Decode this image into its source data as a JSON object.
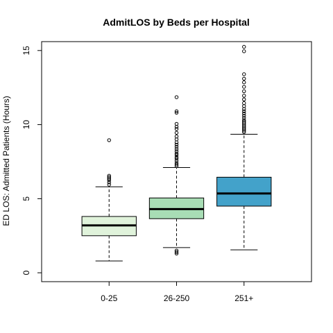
{
  "chart_data": {
    "type": "box",
    "title": "AdmitLOS by Beds per Hospital",
    "xlabel": "",
    "ylabel": "ED LOS: Admitted Patients (Hours)",
    "ylim": [
      -0.6,
      15.6
    ],
    "yticks": [
      0,
      5,
      10,
      15
    ],
    "categories": [
      "0-25",
      "26-250",
      "251+"
    ],
    "boxes": [
      {
        "category": "0-25",
        "color": "#e0f3db",
        "whisker_low": 0.8,
        "q1": 2.5,
        "median": 3.2,
        "q3": 3.8,
        "whisker_high": 5.8,
        "outliers": [
          5.95,
          6.1,
          6.25,
          6.35,
          6.45,
          6.55,
          8.95
        ]
      },
      {
        "category": "26-250",
        "color": "#a8ddb5",
        "whisker_low": 1.7,
        "q1": 3.65,
        "median": 4.3,
        "q3": 5.05,
        "whisker_high": 7.1,
        "outliers": [
          1.3,
          1.4,
          1.5,
          7.2,
          7.3,
          7.4,
          7.55,
          7.7,
          7.8,
          7.95,
          8.05,
          8.2,
          8.35,
          8.5,
          8.65,
          8.8,
          9.0,
          9.2,
          9.45,
          9.7,
          9.85,
          10.05,
          10.8,
          10.9,
          11.85
        ]
      },
      {
        "category": "251+",
        "color": "#43a2ca",
        "whisker_low": 1.55,
        "q1": 4.5,
        "median": 5.35,
        "q3": 6.45,
        "whisker_high": 9.35,
        "outliers": [
          9.5,
          9.6,
          9.7,
          9.8,
          9.9,
          10.0,
          10.1,
          10.2,
          10.3,
          10.45,
          10.6,
          10.75,
          10.9,
          11.05,
          11.25,
          11.45,
          11.7,
          11.95,
          12.25,
          12.55,
          12.85,
          13.1,
          13.4,
          14.95,
          15.25
        ]
      }
    ]
  }
}
